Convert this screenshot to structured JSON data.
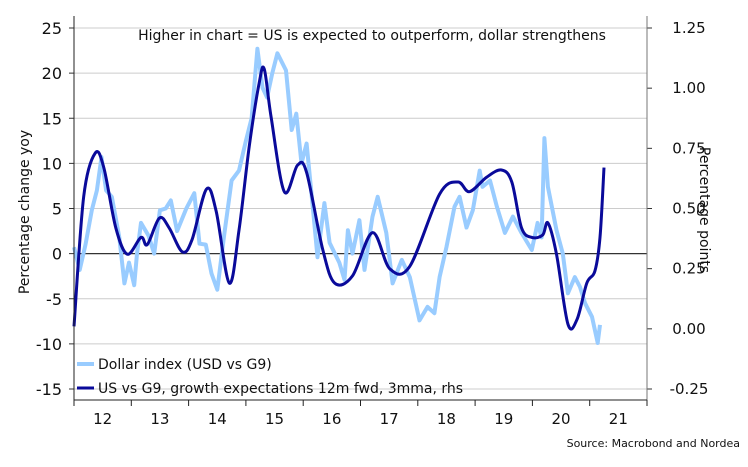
{
  "chart_data": {
    "type": "line",
    "title": "Higher in chart = US is expected to outperform, dollar strengthens",
    "ylabel": "Percentage change yoy",
    "ylabel_right": "Percentage points",
    "source": "Source: Macrobond and Nordea",
    "xlim": [
      2012,
      2022
    ],
    "ylim": [
      -15,
      25
    ],
    "ylim_right": [
      -0.25,
      1.25
    ],
    "x_tick_labels": [
      "12",
      "13",
      "14",
      "15",
      "16",
      "17",
      "18",
      "19",
      "20",
      "21"
    ],
    "y_ticks": [
      25,
      20,
      15,
      10,
      5,
      0,
      -5,
      -10,
      -15
    ],
    "y_ticks_right": [
      "1.25",
      "1.00",
      "0.75",
      "0.50",
      "0.25",
      "0.00",
      "-0.25"
    ],
    "grid": true,
    "legend_position": "bottom-left",
    "colors": {
      "dollar": "#99ccff",
      "growth": "#0a0a9a",
      "grid": "#cccccc",
      "zero_line": "#333333"
    },
    "series": [
      {
        "name": "Dollar index (USD vs G9)",
        "axis": "left",
        "x": [
          2012.0,
          2012.1,
          2012.2,
          2012.31,
          2012.4,
          2012.48,
          2012.56,
          2012.66,
          2012.79,
          2012.88,
          2012.96,
          2013.05,
          2013.1,
          2013.17,
          2013.3,
          2013.4,
          2013.5,
          2013.6,
          2013.69,
          2013.8,
          2013.96,
          2014.1,
          2014.19,
          2014.3,
          2014.4,
          2014.5,
          2014.62,
          2014.75,
          2014.88,
          2015.0,
          2015.1,
          2015.2,
          2015.29,
          2015.37,
          2015.46,
          2015.55,
          2015.7,
          2015.8,
          2015.88,
          2015.97,
          2016.06,
          2016.16,
          2016.25,
          2016.37,
          2016.46,
          2016.63,
          2016.72,
          2016.78,
          2016.86,
          2016.98,
          2017.07,
          2017.21,
          2017.3,
          2017.45,
          2017.56,
          2017.72,
          2017.86,
          2018.03,
          2018.17,
          2018.29,
          2018.38,
          2018.5,
          2018.64,
          2018.73,
          2018.85,
          2018.96,
          2019.08,
          2019.13,
          2019.26,
          2019.38,
          2019.52,
          2019.66,
          2019.81,
          2019.99,
          2020.09,
          2020.16,
          2020.21,
          2020.27,
          2020.42,
          2020.53,
          2020.62,
          2020.74,
          2020.83,
          2020.92,
          2021.04,
          2021.14,
          2021.18
        ],
        "values": [
          0.7,
          -1.8,
          1.0,
          4.8,
          7.0,
          10.7,
          7.0,
          6.3,
          1.8,
          -3.3,
          -1.0,
          -3.5,
          0.0,
          3.4,
          2.0,
          0.0,
          4.8,
          5.0,
          5.9,
          2.5,
          5.0,
          6.7,
          1.1,
          1.0,
          -2.2,
          -4.0,
          2.0,
          8.1,
          9.2,
          12.5,
          15.0,
          22.7,
          18.4,
          17.3,
          20.0,
          22.2,
          20.3,
          13.7,
          15.5,
          10.0,
          12.2,
          5.6,
          -0.4,
          5.6,
          1.2,
          -1.0,
          -2.9,
          2.6,
          0.0,
          3.7,
          -1.8,
          4.1,
          6.3,
          2.3,
          -3.3,
          -0.7,
          -2.6,
          -7.4,
          -5.9,
          -6.6,
          -2.6,
          0.7,
          5.2,
          6.3,
          2.9,
          4.8,
          9.2,
          7.4,
          8.1,
          5.2,
          2.3,
          4.1,
          2.3,
          0.4,
          3.4,
          1.8,
          12.8,
          7.4,
          2.6,
          0.0,
          -4.4,
          -2.6,
          -3.7,
          -5.5,
          -7.0,
          -9.9,
          -7.9
        ]
      },
      {
        "name": "US vs G9, growth expectations 12m fwd, 3mma, rhs",
        "axis": "right",
        "x": [
          2012.0,
          2012.17,
          2012.37,
          2012.52,
          2012.73,
          2012.93,
          2013.17,
          2013.28,
          2013.49,
          2013.66,
          2013.89,
          2014.06,
          2014.31,
          2014.48,
          2014.71,
          2014.88,
          2015.06,
          2015.23,
          2015.32,
          2015.44,
          2015.67,
          2015.9,
          2016.06,
          2016.34,
          2016.55,
          2016.86,
          2017.21,
          2017.51,
          2017.86,
          2018.38,
          2018.7,
          2018.9,
          2019.2,
          2019.46,
          2019.64,
          2019.81,
          2019.99,
          2020.18,
          2020.27,
          2020.42,
          2020.62,
          2020.78,
          2020.95,
          2021.09,
          2021.18,
          2021.25
        ],
        "values": [
          0.01,
          0.55,
          0.73,
          0.67,
          0.42,
          0.31,
          0.38,
          0.35,
          0.46,
          0.42,
          0.32,
          0.37,
          0.58,
          0.49,
          0.19,
          0.41,
          0.76,
          1.02,
          1.08,
          0.88,
          0.57,
          0.68,
          0.65,
          0.33,
          0.19,
          0.22,
          0.4,
          0.25,
          0.26,
          0.56,
          0.61,
          0.57,
          0.63,
          0.66,
          0.61,
          0.42,
          0.38,
          0.39,
          0.44,
          0.31,
          0.02,
          0.04,
          0.19,
          0.24,
          0.38,
          0.67
        ]
      }
    ]
  }
}
